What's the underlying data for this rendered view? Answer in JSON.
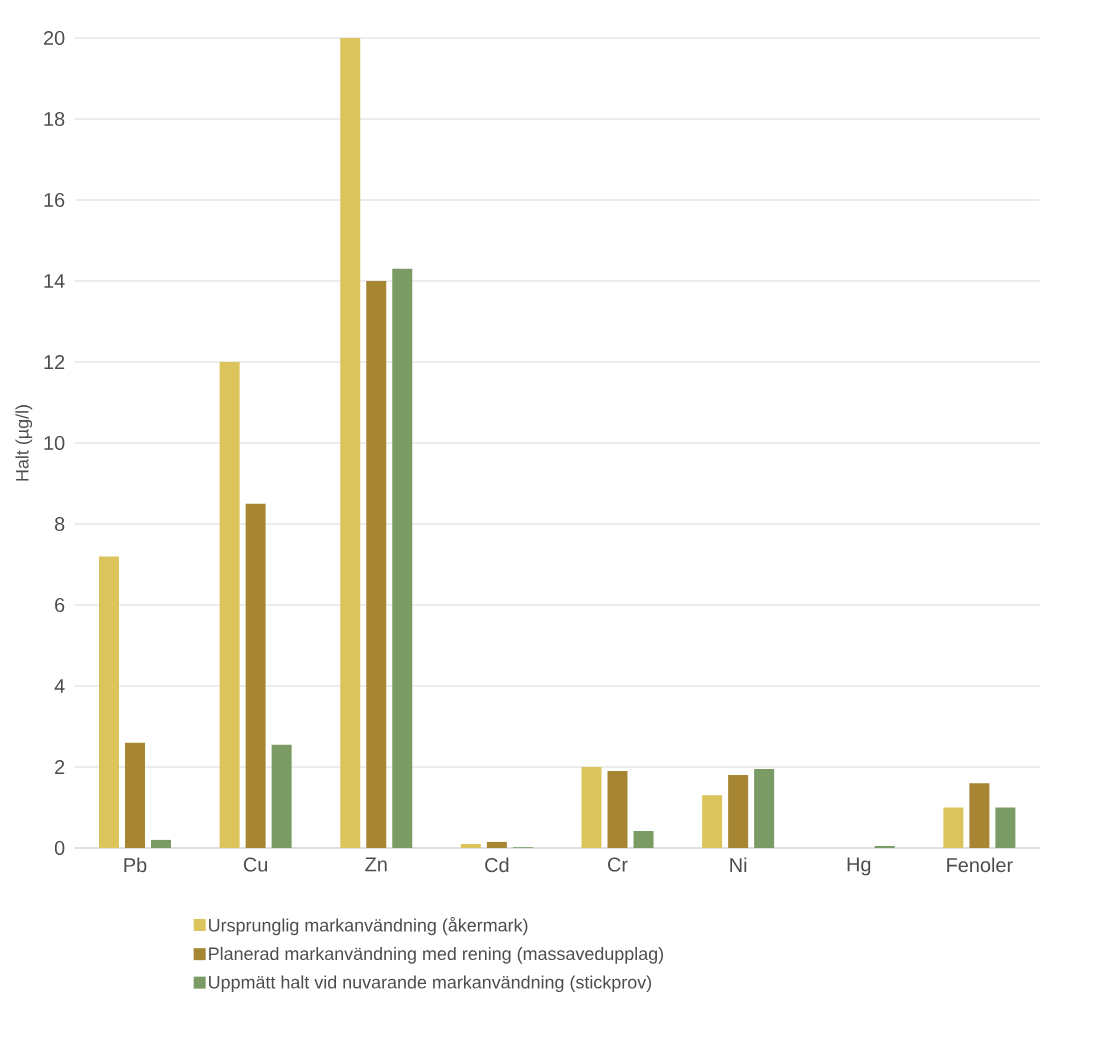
{
  "chart_data": {
    "type": "bar",
    "ylabel": "Halt (µg/l)",
    "categories": [
      "Pb",
      "Cu",
      "Zn",
      "Cd",
      "Cr",
      "Ni",
      "Hg",
      "Fenoler"
    ],
    "series": [
      {
        "name": "Ursprunglig markanvändning (åkermark)",
        "color": "#dcc45c",
        "values": [
          7.2,
          12,
          20,
          0.1,
          2.0,
          1.3,
          null,
          1.0
        ]
      },
      {
        "name": "Planerad markanvändning med rening (massavedupplag)",
        "color": "#a68633",
        "values": [
          2.6,
          8.5,
          14,
          0.15,
          1.9,
          1.8,
          null,
          1.6
        ]
      },
      {
        "name": "Uppmätt halt vid nuvarande markanvändning (stickprov)",
        "color": "#7a9c64",
        "values": [
          0.2,
          2.55,
          14.3,
          0.02,
          0.42,
          1.95,
          0.05,
          1.0
        ]
      }
    ],
    "ylim": [
      0,
      20
    ],
    "yticks": [
      0,
      2,
      4,
      6,
      8,
      10,
      12,
      14,
      16,
      18,
      20
    ],
    "grid": "y",
    "legend": "bottom"
  }
}
